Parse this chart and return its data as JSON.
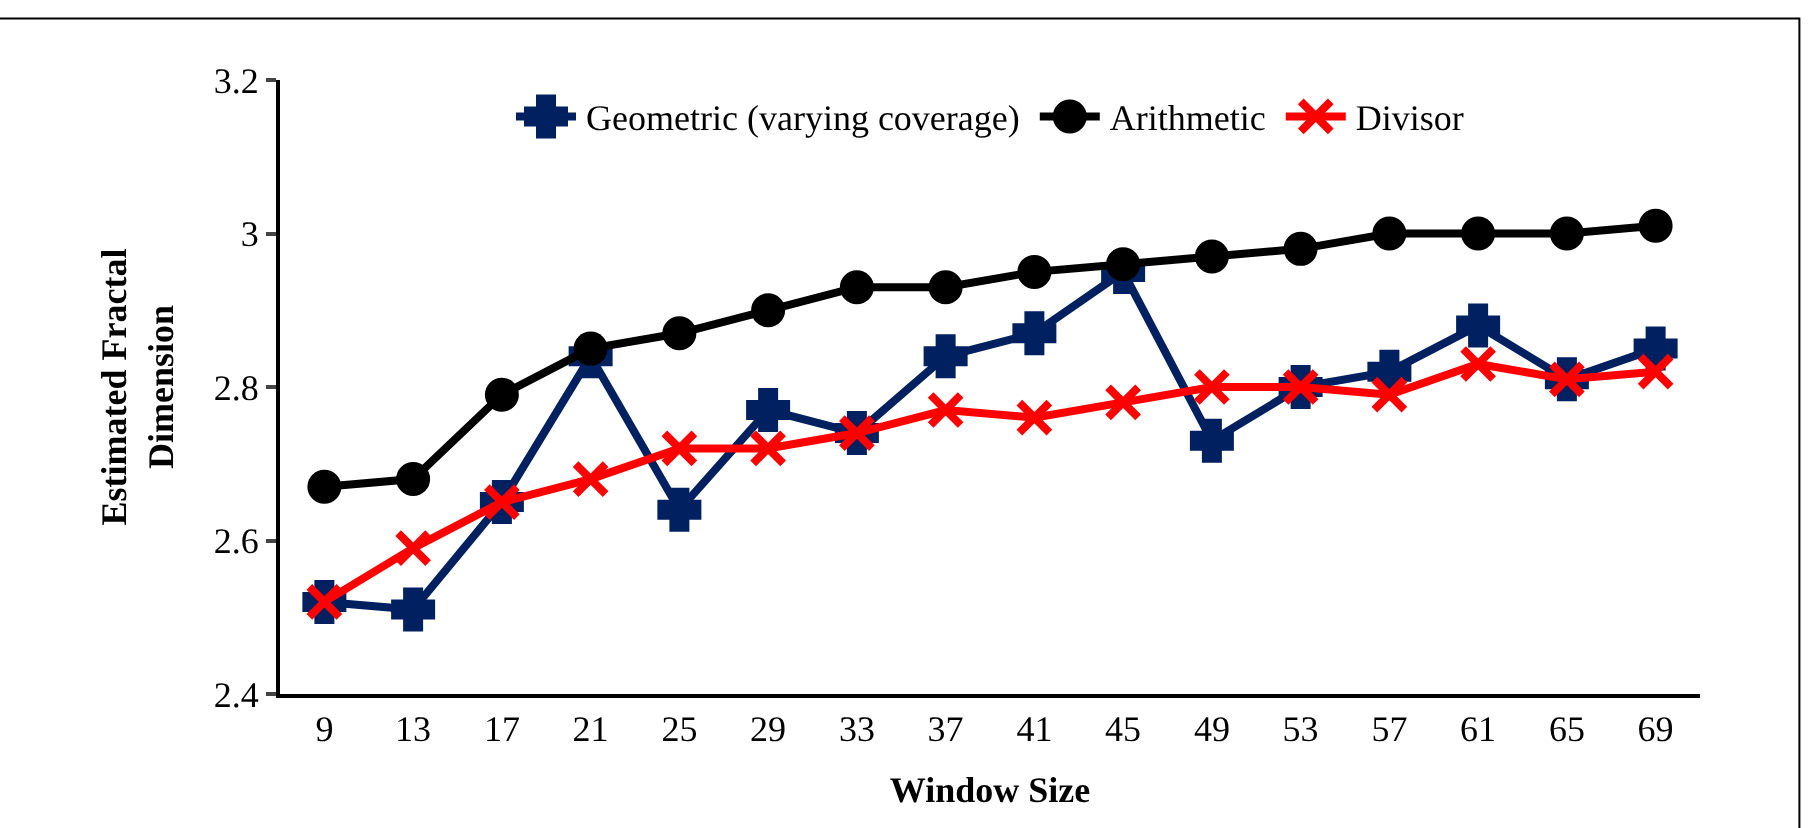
{
  "chart_data": {
    "type": "line",
    "xlabel": "Window Size",
    "ylabel": "Estimated Fractal Dimension",
    "categories": [
      "9",
      "13",
      "17",
      "21",
      "25",
      "29",
      "33",
      "37",
      "41",
      "45",
      "49",
      "53",
      "57",
      "61",
      "65",
      "69"
    ],
    "ylim": [
      2.4,
      3.2
    ],
    "yticks": [
      2.4,
      2.6,
      2.8,
      3,
      3.2
    ],
    "legend": "top",
    "line_style": "solid",
    "series": [
      {
        "name": "Geometric (varying coverage)",
        "color": "#002060",
        "marker": "cross",
        "values": [
          2.52,
          2.51,
          2.65,
          2.84,
          2.64,
          2.77,
          2.74,
          2.84,
          2.87,
          2.95,
          2.73,
          2.8,
          2.82,
          2.88,
          2.81,
          2.85
        ]
      },
      {
        "name": "Arithmetic",
        "color": "#000000",
        "marker": "circle",
        "values": [
          2.67,
          2.68,
          2.79,
          2.85,
          2.87,
          2.9,
          2.93,
          2.93,
          2.95,
          2.96,
          2.97,
          2.98,
          3.0,
          3.0,
          3.0,
          3.01
        ]
      },
      {
        "name": "Divisor",
        "color": "#ff0000",
        "marker": "x",
        "values": [
          2.52,
          2.59,
          2.65,
          2.68,
          2.72,
          2.72,
          2.74,
          2.77,
          2.76,
          2.78,
          2.8,
          2.8,
          2.79,
          2.83,
          2.81,
          2.82
        ]
      }
    ]
  }
}
